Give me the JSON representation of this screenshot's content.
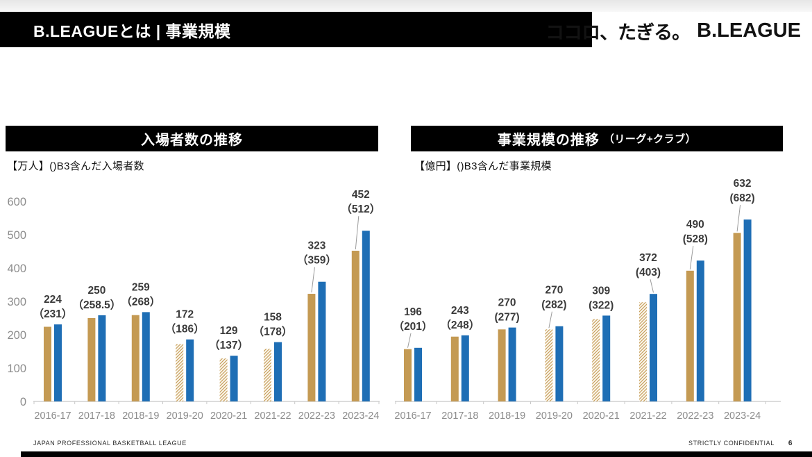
{
  "header": {
    "title": "B.LEAGUEとは | 事業規模",
    "logo_tagline": "ココロ、たぎる。",
    "logo_brand": "B.LEAGUE"
  },
  "footer": {
    "left": "JAPAN PROFESSIONAL BASKETBALL LEAGUE",
    "right": "STRICTLY CONFIDENTIAL",
    "page": "6"
  },
  "colors": {
    "gold": "#C49A53",
    "blue": "#1E6EB5",
    "hatch_bg": "#FBF6EC",
    "value_label": "#3a3a3a",
    "axis_text": "#8c8c8c",
    "axis_line": "#c8c8c8",
    "leader_line": "#9a9a9a"
  },
  "chart_data": [
    {
      "type": "bar",
      "title": "入場者数の推移",
      "title_suffix": "",
      "subtitle": "【万人】()B3含んだ入場者数",
      "ylabel": "万人",
      "categories": [
        "2016-17",
        "2017-18",
        "2018-19",
        "2019-20",
        "2020-21",
        "2021-22",
        "2022-23",
        "2023-24"
      ],
      "series": [
        {
          "id": "excl_b3",
          "values": [
            224,
            250,
            259,
            172,
            129,
            158,
            323,
            452
          ]
        },
        {
          "id": "incl_b3",
          "values": [
            231,
            258.5,
            268,
            186,
            137,
            178,
            359,
            512
          ]
        }
      ],
      "value_labels": [
        {
          "line1": "224",
          "line2": "（231）"
        },
        {
          "line1": "250",
          "line2": "（258.5）"
        },
        {
          "line1": "259",
          "line2": "（268）"
        },
        {
          "line1": "172",
          "line2": "（186）"
        },
        {
          "line1": "129",
          "line2": "（137）"
        },
        {
          "line1": "158",
          "line2": "（178）"
        },
        {
          "line1": "323",
          "line2": "（359）"
        },
        {
          "line1": "452",
          "line2": "（512）"
        }
      ],
      "hatched": [
        false,
        false,
        false,
        true,
        true,
        true,
        false,
        false
      ],
      "leader_targets": [
        null,
        null,
        null,
        null,
        null,
        null,
        "gold",
        "gold"
      ],
      "ylim": [
        0,
        600
      ],
      "yticks": [
        0,
        100,
        200,
        300,
        400,
        500,
        600
      ],
      "grid": false,
      "legend": false
    },
    {
      "type": "bar",
      "title": "事業規模の推移",
      "title_suffix": "（リーグ+クラブ）",
      "subtitle": "【億円】()B3含んだ事業規模",
      "ylabel": "億円",
      "categories": [
        "2016-17",
        "2017-18",
        "2018-19",
        "2019-20",
        "2020-21",
        "2021-22",
        "2022-23",
        "2023-24"
      ],
      "series": [
        {
          "id": "excl_b3",
          "values": [
            196,
            243,
            270,
            270,
            309,
            372,
            490,
            632
          ]
        },
        {
          "id": "incl_b3",
          "values": [
            201,
            248,
            277,
            282,
            322,
            403,
            528,
            682
          ]
        }
      ],
      "value_labels": [
        {
          "line1": "196",
          "line2": "（201）"
        },
        {
          "line1": "243",
          "line2": "（248）"
        },
        {
          "line1": "270",
          "line2": "(277)"
        },
        {
          "line1": "270",
          "line2": "(282)"
        },
        {
          "line1": "309",
          "line2": "(322)"
        },
        {
          "line1": "372",
          "line2": "(403)"
        },
        {
          "line1": "490",
          "line2": "(528)"
        },
        {
          "line1": "632",
          "line2": "(682)"
        }
      ],
      "hatched": [
        false,
        false,
        false,
        true,
        true,
        true,
        false,
        false
      ],
      "leader_targets": [
        "gold",
        null,
        null,
        "gold",
        null,
        "blue",
        "gold",
        "gold"
      ],
      "ylim": [
        0,
        750
      ],
      "yticks": [],
      "grid": false,
      "legend": false
    }
  ]
}
